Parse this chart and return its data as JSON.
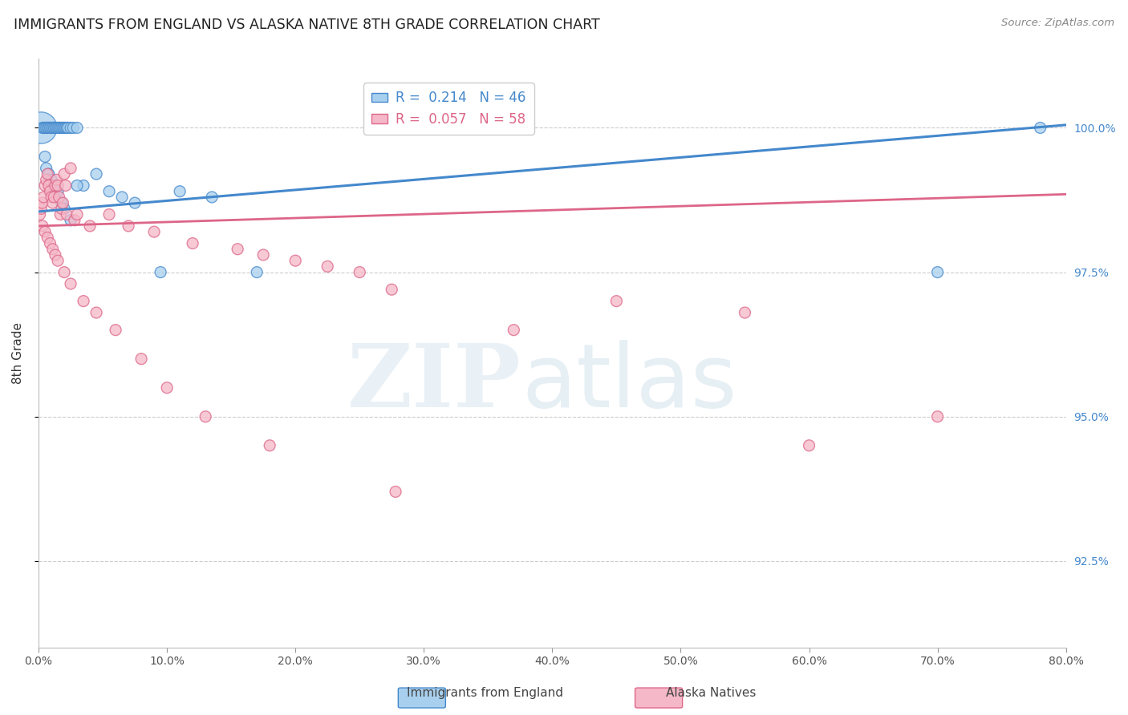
{
  "title": "IMMIGRANTS FROM ENGLAND VS ALASKA NATIVE 8TH GRADE CORRELATION CHART",
  "source": "Source: ZipAtlas.com",
  "ylabel_left": "8th Grade",
  "x_min": 0.0,
  "x_max": 80.0,
  "y_min": 91.0,
  "y_max": 101.2,
  "y_ticks": [
    92.5,
    95.0,
    97.5,
    100.0
  ],
  "x_ticks": [
    0.0,
    10.0,
    20.0,
    30.0,
    40.0,
    50.0,
    60.0,
    70.0,
    80.0
  ],
  "blue_R": 0.214,
  "blue_N": 46,
  "pink_R": 0.057,
  "pink_N": 58,
  "blue_color": "#a8d0ee",
  "pink_color": "#f5b8c8",
  "blue_line_color": "#4488cc",
  "pink_line_color": "#dd6688",
  "legend_label_blue": "Immigrants from England",
  "legend_label_pink": "Alaska Natives",
  "blue_line_x0": 0.0,
  "blue_line_y0": 98.55,
  "blue_line_x1": 80.0,
  "blue_line_y1": 100.05,
  "pink_line_x0": 0.0,
  "pink_line_y0": 98.3,
  "pink_line_x1": 80.0,
  "pink_line_y1": 98.85,
  "blue_pts_x": [
    0.2,
    0.3,
    0.4,
    0.5,
    0.6,
    0.7,
    0.8,
    0.9,
    1.0,
    1.1,
    1.2,
    1.3,
    1.4,
    1.5,
    1.6,
    1.7,
    1.8,
    1.9,
    2.0,
    2.1,
    2.2,
    2.3,
    2.5,
    2.7,
    3.0,
    3.5,
    4.5,
    5.5,
    6.5,
    7.5,
    9.5,
    11.0,
    13.5,
    17.0,
    70.0,
    78.0,
    0.5,
    0.6,
    0.8,
    1.0,
    1.2,
    1.5,
    1.8,
    2.0,
    2.5,
    3.0
  ],
  "blue_pts_y": [
    100.0,
    100.0,
    100.0,
    100.0,
    100.0,
    100.0,
    100.0,
    100.0,
    100.0,
    100.0,
    100.0,
    100.0,
    100.0,
    100.0,
    100.0,
    100.0,
    100.0,
    100.0,
    100.0,
    100.0,
    100.0,
    100.0,
    100.0,
    100.0,
    100.0,
    99.0,
    99.2,
    98.9,
    98.8,
    98.7,
    97.5,
    98.9,
    98.8,
    97.5,
    97.5,
    100.0,
    99.5,
    99.3,
    99.2,
    99.1,
    99.0,
    98.9,
    98.7,
    98.6,
    98.4,
    99.0
  ],
  "blue_pts_sizes": [
    80,
    80,
    80,
    80,
    80,
    80,
    80,
    80,
    80,
    80,
    80,
    80,
    80,
    80,
    80,
    80,
    80,
    80,
    80,
    80,
    80,
    80,
    80,
    80,
    80,
    80,
    80,
    80,
    80,
    80,
    80,
    80,
    80,
    80,
    80,
    80,
    80,
    80,
    80,
    80,
    80,
    80,
    80,
    80,
    80,
    80
  ],
  "pink_pts_x": [
    0.1,
    0.2,
    0.3,
    0.4,
    0.5,
    0.6,
    0.7,
    0.8,
    0.9,
    1.0,
    1.1,
    1.2,
    1.3,
    1.4,
    1.5,
    1.6,
    1.7,
    1.8,
    1.9,
    2.0,
    2.1,
    2.2,
    2.5,
    2.8,
    3.0,
    4.0,
    5.5,
    7.0,
    9.0,
    12.0,
    15.5,
    17.5,
    20.0,
    22.5,
    25.0,
    27.5,
    27.8,
    37.0,
    45.0,
    55.0,
    60.0,
    70.0,
    0.3,
    0.5,
    0.7,
    0.9,
    1.1,
    1.3,
    1.5,
    2.0,
    2.5,
    3.5,
    4.5,
    6.0,
    8.0,
    10.0,
    13.0,
    18.0
  ],
  "pink_pts_y": [
    98.5,
    98.6,
    98.7,
    98.8,
    99.0,
    99.1,
    99.2,
    99.0,
    98.9,
    98.8,
    98.7,
    98.8,
    99.0,
    99.1,
    99.0,
    98.8,
    98.5,
    98.6,
    98.7,
    99.2,
    99.0,
    98.5,
    99.3,
    98.4,
    98.5,
    98.3,
    98.5,
    98.3,
    98.2,
    98.0,
    97.9,
    97.8,
    97.7,
    97.6,
    97.5,
    97.2,
    93.7,
    96.5,
    97.0,
    96.8,
    94.5,
    95.0,
    98.3,
    98.2,
    98.1,
    98.0,
    97.9,
    97.8,
    97.7,
    97.5,
    97.3,
    97.0,
    96.8,
    96.5,
    96.0,
    95.5,
    95.0,
    94.5
  ],
  "pink_pts_sizes": [
    80,
    80,
    80,
    80,
    80,
    80,
    80,
    80,
    80,
    80,
    80,
    80,
    80,
    80,
    80,
    80,
    80,
    80,
    80,
    80,
    80,
    80,
    80,
    80,
    80,
    80,
    80,
    80,
    80,
    80,
    80,
    80,
    80,
    80,
    80,
    80,
    80,
    80,
    80,
    80,
    80,
    80,
    80,
    80,
    80,
    80,
    80,
    80,
    80,
    80,
    80,
    80,
    80,
    80,
    80,
    80,
    80,
    80
  ]
}
